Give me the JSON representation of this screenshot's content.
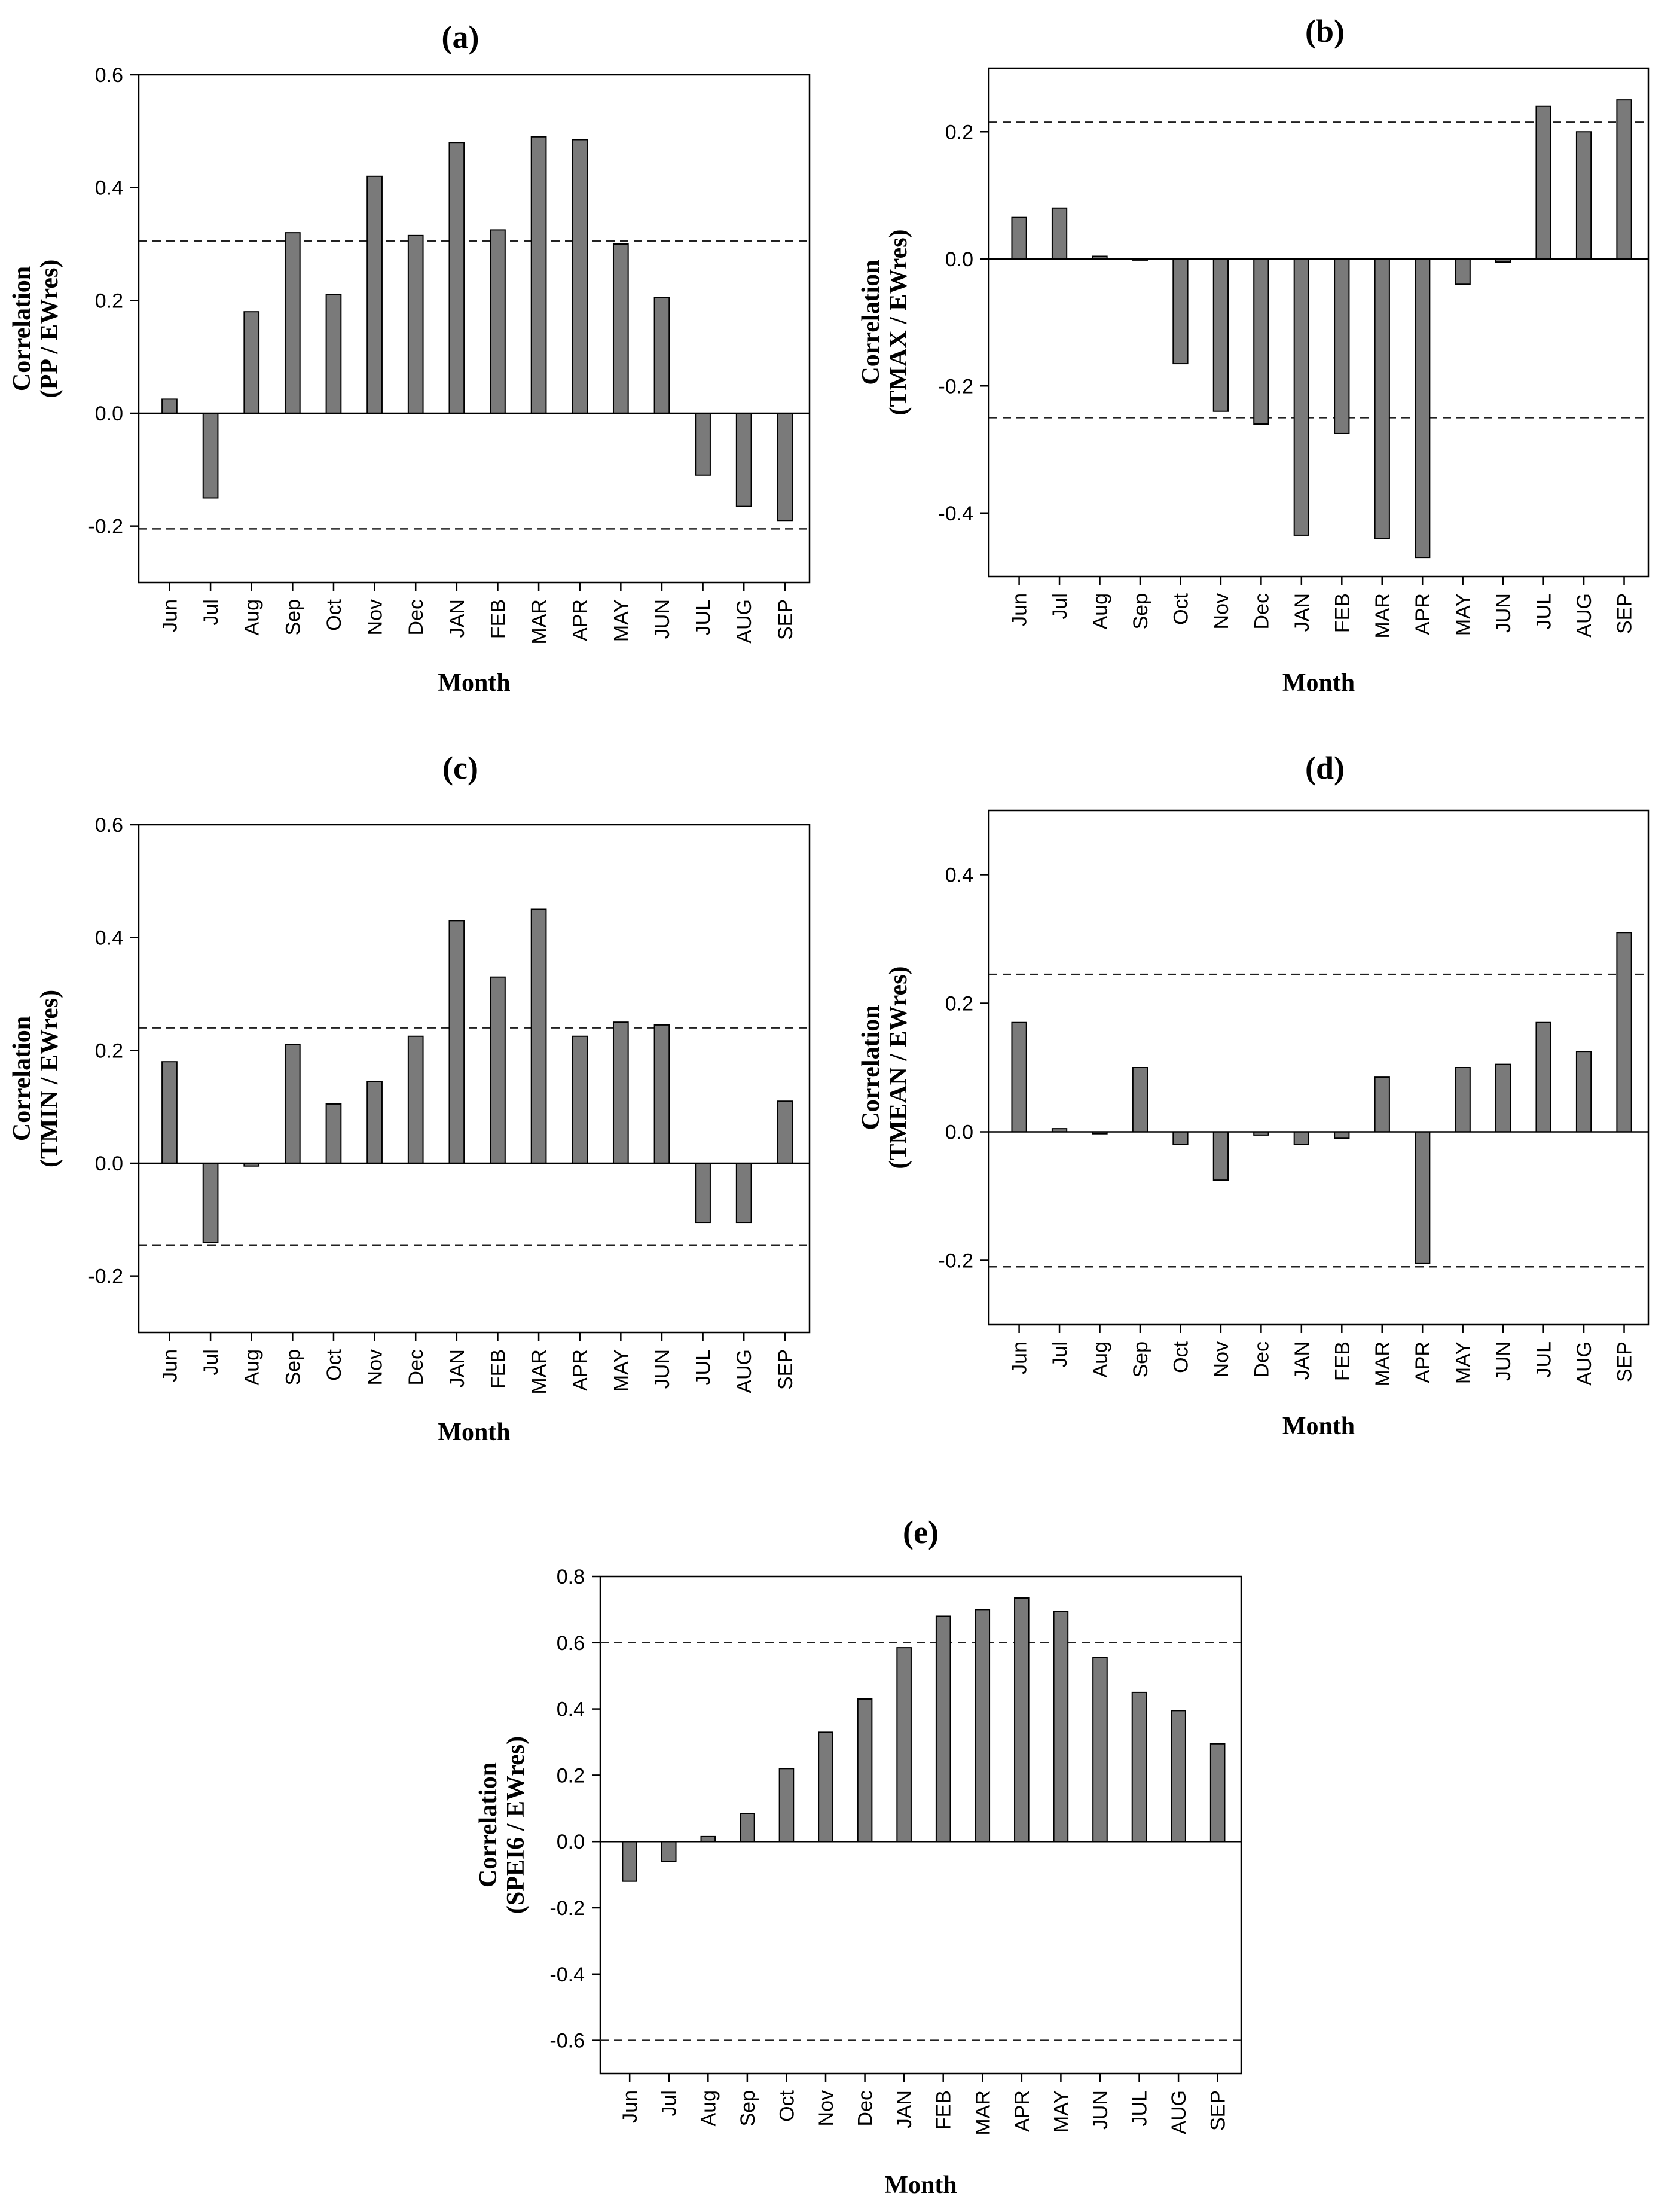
{
  "chart_data": [
    {
      "type": "bar",
      "panel": "(a)",
      "title": "",
      "xlabel": "Month",
      "ylabel": [
        "Correlation",
        "(PP / EWres)"
      ],
      "categories": [
        "Jun",
        "Jul",
        "Aug",
        "Sep",
        "Oct",
        "Nov",
        "Dec",
        "JAN",
        "FEB",
        "MAR",
        "APR",
        "MAY",
        "JUN",
        "JUL",
        "AUG",
        "SEP"
      ],
      "values": [
        0.025,
        -0.15,
        0.18,
        0.32,
        0.21,
        0.42,
        0.315,
        0.48,
        0.325,
        0.49,
        0.485,
        0.3,
        0.205,
        -0.11,
        -0.165,
        -0.19
      ],
      "ylim": [
        -0.3,
        0.6
      ],
      "yticks": [
        -0.2,
        0.0,
        0.2,
        0.4,
        0.6
      ],
      "ytick_labels": [
        "-0.2",
        "0.0",
        "0.2",
        "0.4",
        "0.6"
      ],
      "significance_lines": [
        0.305,
        -0.205
      ],
      "bar_color": "#7a7a7a"
    },
    {
      "type": "bar",
      "panel": "(b)",
      "title": "",
      "xlabel": "Month",
      "ylabel": [
        "Correlation",
        "(TMAX / EWres)"
      ],
      "categories": [
        "Jun",
        "Jul",
        "Aug",
        "Sep",
        "Oct",
        "Nov",
        "Dec",
        "JAN",
        "FEB",
        "MAR",
        "APR",
        "MAY",
        "JUN",
        "JUL",
        "AUG",
        "SEP"
      ],
      "values": [
        0.065,
        0.08,
        0.004,
        -0.002,
        -0.165,
        -0.24,
        -0.26,
        -0.435,
        -0.275,
        -0.44,
        -0.47,
        -0.04,
        -0.005,
        0.24,
        0.2,
        0.25
      ],
      "ylim": [
        -0.5,
        0.3
      ],
      "yticks": [
        -0.4,
        -0.2,
        0.0,
        0.2
      ],
      "ytick_labels": [
        "-0.4",
        "-0.2",
        "0.0",
        "0.2"
      ],
      "significance_lines": [
        0.215,
        -0.25
      ],
      "bar_color": "#7a7a7a"
    },
    {
      "type": "bar",
      "panel": "(c)",
      "title": "",
      "xlabel": "Month",
      "ylabel": [
        "Correlation",
        "(TMIN / EWres)"
      ],
      "categories": [
        "Jun",
        "Jul",
        "Aug",
        "Sep",
        "Oct",
        "Nov",
        "Dec",
        "JAN",
        "FEB",
        "MAR",
        "APR",
        "MAY",
        "JUN",
        "JUL",
        "AUG",
        "SEP"
      ],
      "values": [
        0.18,
        -0.14,
        -0.005,
        0.21,
        0.105,
        0.145,
        0.225,
        0.43,
        0.33,
        0.45,
        0.225,
        0.25,
        0.245,
        -0.105,
        -0.105,
        0.11
      ],
      "ylim": [
        -0.3,
        0.6
      ],
      "yticks": [
        -0.2,
        0.0,
        0.2,
        0.4,
        0.6
      ],
      "ytick_labels": [
        "-0.2",
        "0.0",
        "0.2",
        "0.4",
        "0.6"
      ],
      "significance_lines": [
        0.24,
        -0.145
      ],
      "bar_color": "#7a7a7a"
    },
    {
      "type": "bar",
      "panel": "(d)",
      "title": "",
      "xlabel": "Month",
      "ylabel": [
        "Correlation",
        "(TMEAN / EWres)"
      ],
      "categories": [
        "Jun",
        "Jul",
        "Aug",
        "Sep",
        "Oct",
        "Nov",
        "Dec",
        "JAN",
        "FEB",
        "MAR",
        "APR",
        "MAY",
        "JUN",
        "JUL",
        "AUG",
        "SEP"
      ],
      "values": [
        0.17,
        0.005,
        -0.003,
        0.1,
        -0.02,
        -0.075,
        -0.005,
        -0.02,
        -0.01,
        0.085,
        -0.205,
        0.1,
        0.105,
        0.17,
        0.125,
        0.31
      ],
      "ylim": [
        -0.3,
        0.5
      ],
      "yticks": [
        -0.2,
        0.0,
        0.2,
        0.4
      ],
      "ytick_labels": [
        "-0.2",
        "0.0",
        "0.2",
        "0.4"
      ],
      "significance_lines": [
        0.245,
        -0.21
      ],
      "bar_color": "#7a7a7a"
    },
    {
      "type": "bar",
      "panel": "(e)",
      "title": "",
      "xlabel": "Month",
      "ylabel": [
        "Correlation",
        "(SPEI6 / EWres)"
      ],
      "categories": [
        "Jun",
        "Jul",
        "Aug",
        "Sep",
        "Oct",
        "Nov",
        "Dec",
        "JAN",
        "FEB",
        "MAR",
        "APR",
        "MAY",
        "JUN",
        "JUL",
        "AUG",
        "SEP"
      ],
      "values": [
        -0.12,
        -0.06,
        0.015,
        0.085,
        0.22,
        0.33,
        0.43,
        0.585,
        0.68,
        0.7,
        0.735,
        0.695,
        0.555,
        0.45,
        0.395,
        0.295
      ],
      "ylim": [
        -0.7,
        0.8
      ],
      "yticks": [
        -0.6,
        -0.4,
        -0.2,
        0.0,
        0.2,
        0.4,
        0.6,
        0.8
      ],
      "ytick_labels": [
        "-0.6",
        "-0.4",
        "-0.2",
        "0.0",
        "0.2",
        "0.4",
        "0.6",
        "0.8"
      ],
      "significance_lines": [
        0.6,
        -0.6
      ],
      "bar_color": "#7a7a7a"
    }
  ]
}
